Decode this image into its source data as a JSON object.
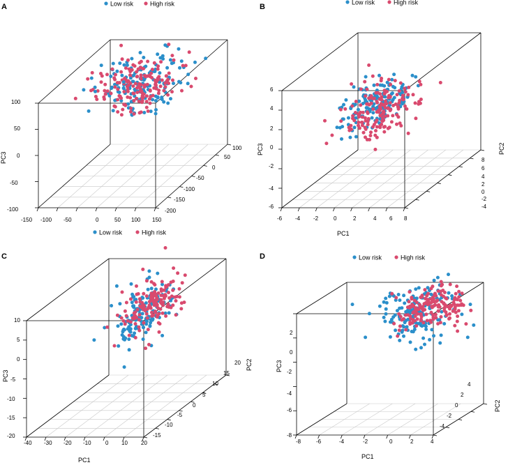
{
  "colors": {
    "low": "#2b8fca",
    "high": "#d94a6e"
  },
  "chart_data": [
    {
      "id": "A",
      "type": "scatter",
      "panel_label": "A",
      "legend": [
        "Low risk",
        "High risk"
      ],
      "legend_position": "top",
      "zlabel": "PC3",
      "x_ticks": [
        "-150",
        "-100",
        "-50",
        "0",
        "50",
        "100",
        "150"
      ],
      "x_range": [
        -150,
        150
      ],
      "y_ticks": [
        "-200",
        "-150",
        "-100",
        "-50",
        "0",
        "50",
        "100"
      ],
      "y_range": [
        -200,
        100
      ],
      "z_ticks": [
        "-100",
        "-50",
        "0",
        "50",
        "100"
      ],
      "z_range": [
        -100,
        100
      ],
      "clusters": [
        {
          "series": "low",
          "n": 150,
          "seed": 11,
          "x": [
            10,
            45
          ],
          "y": [
            -20,
            45
          ],
          "z": [
            60,
            22
          ]
        },
        {
          "series": "high",
          "n": 150,
          "seed": 12,
          "x": [
            0,
            40
          ],
          "y": [
            -10,
            40
          ],
          "z": [
            55,
            18
          ]
        },
        {
          "series": "high",
          "n": 22,
          "seed": 13,
          "x": [
            -110,
            25
          ],
          "y": [
            20,
            40
          ],
          "z": [
            55,
            12
          ]
        },
        {
          "series": "low",
          "n": 10,
          "seed": 14,
          "x": [
            -100,
            25
          ],
          "y": [
            30,
            40
          ],
          "z": [
            60,
            12
          ]
        }
      ]
    },
    {
      "id": "B",
      "type": "scatter",
      "panel_label": "B",
      "legend": [
        "Low risk",
        "High risk"
      ],
      "legend_position": "top",
      "xlabel": "PC1",
      "ylabel": "PC2",
      "zlabel": "PC3",
      "x_ticks": [
        "-6",
        "-4",
        "-2",
        "0",
        "2",
        "4",
        "6",
        "8"
      ],
      "x_range": [
        -6,
        8
      ],
      "y_ticks": [
        "-6",
        "-4",
        "-2",
        "0",
        "2",
        "4",
        "6",
        "8"
      ],
      "y_range": [
        -6,
        8
      ],
      "z_ticks": [
        "-6",
        "-4",
        "-2",
        "0",
        "2",
        "4",
        "6"
      ],
      "z_range": [
        -6,
        6
      ],
      "clusters": [
        {
          "series": "low",
          "n": 160,
          "seed": 21,
          "x": [
            1.5,
            1.6
          ],
          "y": [
            -1,
            2.2
          ],
          "z": [
            2.5,
            1.1
          ]
        },
        {
          "series": "high",
          "n": 170,
          "seed": 22,
          "x": [
            1.8,
            1.8
          ],
          "y": [
            -1,
            2.2
          ],
          "z": [
            2.1,
            1.2
          ]
        }
      ]
    },
    {
      "id": "C",
      "type": "scatter",
      "panel_label": "C",
      "legend": [
        "Low risk",
        "High risk"
      ],
      "legend_position": "top",
      "xlabel": "PC1",
      "ylabel": "PC2",
      "zlabel": "PC3",
      "x_ticks": [
        "-40",
        "-30",
        "-20",
        "-10",
        "0",
        "10",
        "20"
      ],
      "x_range": [
        -40,
        20
      ],
      "y_ticks": [
        "-15",
        "-10",
        "-5",
        "0",
        "5",
        "10",
        "15",
        "20"
      ],
      "y_range": [
        -15,
        20
      ],
      "z_ticks": [
        "-20",
        "-15",
        "-10",
        "-5",
        "0",
        "5",
        "10"
      ],
      "z_range": [
        -20,
        10
      ],
      "clusters": [
        {
          "series": "low",
          "n": 150,
          "seed": 31,
          "x": [
            -2,
            5
          ],
          "y": [
            3,
            5
          ],
          "z": [
            4,
            3.5
          ]
        },
        {
          "series": "high",
          "n": 150,
          "seed": 32,
          "x": [
            2,
            4
          ],
          "y": [
            4,
            5
          ],
          "z": [
            5.5,
            3
          ]
        }
      ]
    },
    {
      "id": "D",
      "type": "scatter",
      "panel_label": "D",
      "legend": [
        "Low risk",
        "High risk"
      ],
      "legend_position": "top",
      "xlabel": "PC1",
      "ylabel": "PC2",
      "zlabel": "PC3",
      "x_ticks": [
        "-8",
        "-6",
        "-4",
        "-2",
        "0",
        "2",
        "4"
      ],
      "x_range": [
        -8,
        4
      ],
      "y_ticks": [
        "-4",
        "-2",
        "0",
        "2",
        "4"
      ],
      "y_range": [
        -4,
        4
      ],
      "z_ticks": [
        "-8",
        "-6",
        "-4",
        "-2",
        "0",
        "2"
      ],
      "z_range": [
        -8,
        2
      ],
      "clusters": [
        {
          "series": "low",
          "n": 160,
          "seed": 41,
          "x": [
            0.5,
            1.5
          ],
          "y": [
            0,
            1.5
          ],
          "z": [
            0.8,
            1.2
          ]
        },
        {
          "series": "high",
          "n": 170,
          "seed": 42,
          "x": [
            1.5,
            1.2
          ],
          "y": [
            0.3,
            1.4
          ],
          "z": [
            1.2,
            0.8
          ]
        }
      ]
    }
  ]
}
